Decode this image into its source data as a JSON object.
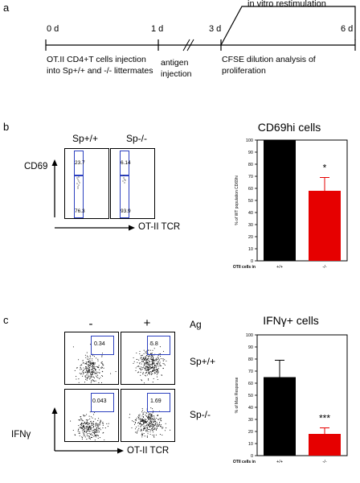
{
  "panels": {
    "a": {
      "letter": "a",
      "timepoints": [
        "0 d",
        "1 d",
        "3 d",
        "6 d"
      ],
      "restim_label": "in vitro restimulation",
      "event_0": "OT.II CD4+T cells injection into Sp+/+ and -/- littermates",
      "event_1": "antigen injection",
      "event_3": "CFSE dilution analysis of proliferation"
    },
    "b": {
      "letter": "b",
      "col_wt": "Sp+/+",
      "col_ko": "Sp-/-",
      "y_axis": "CD69",
      "x_axis": "OT-II TCR",
      "wt_top": "23.7",
      "wt_bottom": "76.3",
      "ko_top": "6.14",
      "ko_bottom": "93.9"
    },
    "c": {
      "letter": "c",
      "col_neg": "-",
      "col_pos": "+",
      "ag_label": "Ag",
      "row_wt": "Sp+/+",
      "row_ko": "Sp-/-",
      "y_axis": "IFNγ",
      "x_axis": "OT-II TCR",
      "wt_neg": "0.34",
      "wt_pos": "5.8",
      "ko_neg": "0.043",
      "ko_pos": "1.69"
    }
  },
  "chart_data": [
    {
      "type": "bar",
      "title": "CD69hi cells",
      "ylabel": "% of WT population CD69hi",
      "xlabel_prefix": "OTII cells in",
      "categories": [
        "+/+",
        "-/-"
      ],
      "values": [
        100,
        58
      ],
      "errors": [
        0,
        11
      ],
      "colors": [
        "#000000",
        "#e60000"
      ],
      "ylim": [
        0,
        100
      ],
      "yticks": [
        0,
        10,
        20,
        30,
        40,
        50,
        60,
        70,
        80,
        90,
        100
      ],
      "annotation": "*"
    },
    {
      "type": "bar",
      "title": "IFNγ+ cells",
      "ylabel": "% of Max Response",
      "xlabel_prefix": "OTII cells in",
      "categories": [
        "+/+",
        "-/-"
      ],
      "values": [
        65,
        18
      ],
      "errors": [
        14,
        5
      ],
      "colors": [
        "#000000",
        "#e60000"
      ],
      "ylim": [
        0,
        100
      ],
      "yticks": [
        0,
        10,
        20,
        30,
        40,
        50,
        60,
        70,
        80,
        90,
        100
      ],
      "annotation": "***"
    }
  ]
}
